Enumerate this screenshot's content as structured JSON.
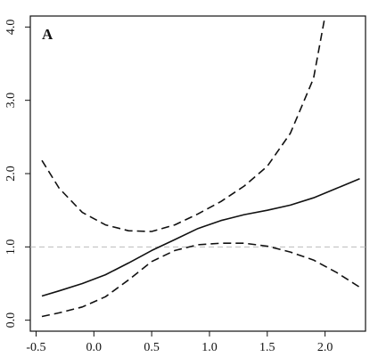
{
  "chart_data": {
    "type": "line",
    "panel_label": "A",
    "title": "",
    "xlabel": "",
    "ylabel": "",
    "xlim": [
      -0.55,
      2.35
    ],
    "ylim": [
      -0.15,
      4.15
    ],
    "x_ticks": [
      -0.5,
      0.0,
      0.5,
      1.0,
      1.5,
      2.0
    ],
    "x_tick_labels": [
      "-0.5",
      "0.0",
      "0.5",
      "1.0",
      "1.5",
      "2.0"
    ],
    "y_ticks": [
      0.0,
      1.0,
      2.0,
      3.0,
      4.0
    ],
    "y_tick_labels": [
      "0.0",
      "1.0",
      "2.0",
      "3.0",
      "4.0"
    ],
    "reference_line": {
      "y": 1.0,
      "style": "dashed",
      "color": "#bbbbbb"
    },
    "grid": false,
    "legend": "none",
    "series": [
      {
        "style": "solid",
        "color": "#111111",
        "x": [
          -0.45,
          -0.3,
          -0.1,
          0.1,
          0.3,
          0.5,
          0.7,
          0.9,
          1.1,
          1.3,
          1.5,
          1.7,
          1.9,
          2.1,
          2.3
        ],
        "y": [
          0.33,
          0.4,
          0.5,
          0.62,
          0.78,
          0.95,
          1.1,
          1.25,
          1.36,
          1.44,
          1.5,
          1.57,
          1.67,
          1.8,
          1.93
        ]
      },
      {
        "style": "dashed",
        "color": "#111111",
        "x": [
          -0.45,
          -0.3,
          -0.1,
          0.1,
          0.3,
          0.5,
          0.7,
          0.9,
          1.1,
          1.3,
          1.5,
          1.7,
          1.9,
          2.0
        ],
        "y": [
          2.18,
          1.8,
          1.47,
          1.3,
          1.22,
          1.21,
          1.3,
          1.45,
          1.62,
          1.83,
          2.1,
          2.55,
          3.3,
          4.15
        ]
      },
      {
        "style": "dashed",
        "color": "#111111",
        "x": [
          -0.45,
          -0.3,
          -0.1,
          0.1,
          0.3,
          0.5,
          0.7,
          0.9,
          1.1,
          1.3,
          1.5,
          1.7,
          1.9,
          2.1,
          2.3
        ],
        "y": [
          0.05,
          0.1,
          0.18,
          0.32,
          0.55,
          0.8,
          0.95,
          1.03,
          1.05,
          1.05,
          1.01,
          0.93,
          0.82,
          0.65,
          0.45
        ]
      }
    ]
  }
}
